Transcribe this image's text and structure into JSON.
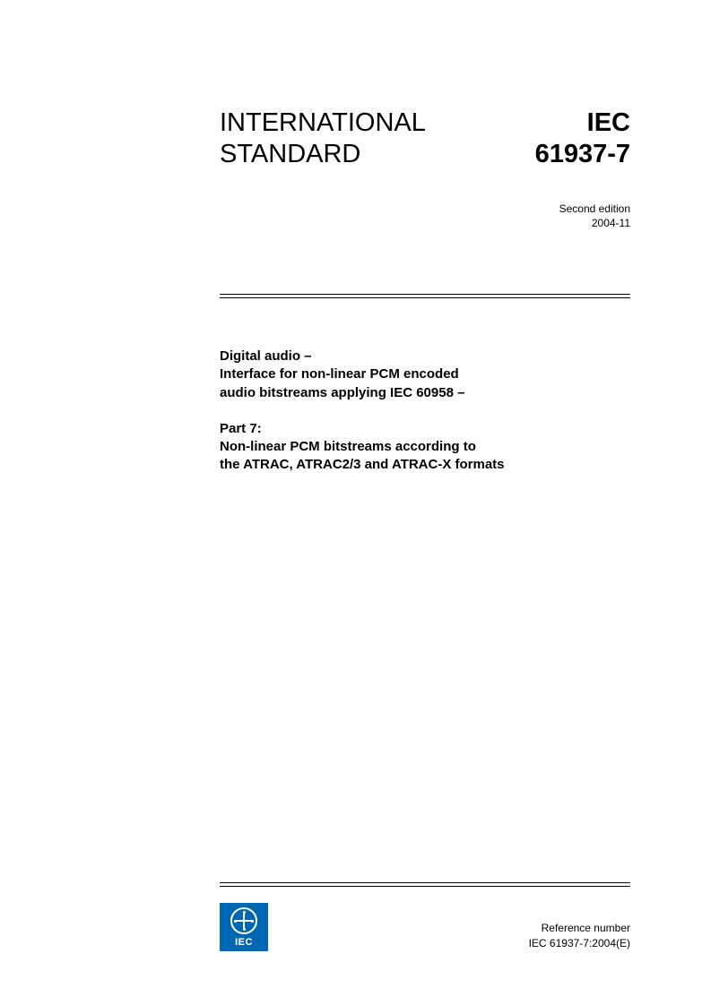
{
  "header": {
    "left_line1": "INTERNATIONAL",
    "left_line2": "STANDARD",
    "right_line1": "IEC",
    "right_line2": "61937-7"
  },
  "edition": {
    "line1": "Second edition",
    "line2": "2004-11"
  },
  "title": {
    "block1_line1": "Digital audio –",
    "block1_line2": "Interface for non-linear PCM encoded",
    "block1_line3": "audio bitstreams applying IEC 60958 –",
    "block2_line1": "Part 7:",
    "block2_line2": "Non-linear PCM bitstreams according to",
    "block2_line3": "the ATRAC, ATRAC2/3 and ATRAC-X formats"
  },
  "logo": {
    "text": "IEC"
  },
  "reference": {
    "label": "Reference number",
    "number": "IEC 61937-7:2004(E)"
  },
  "colors": {
    "logo_bg": "#0068b3",
    "text": "#000000",
    "page_bg": "#ffffff"
  }
}
